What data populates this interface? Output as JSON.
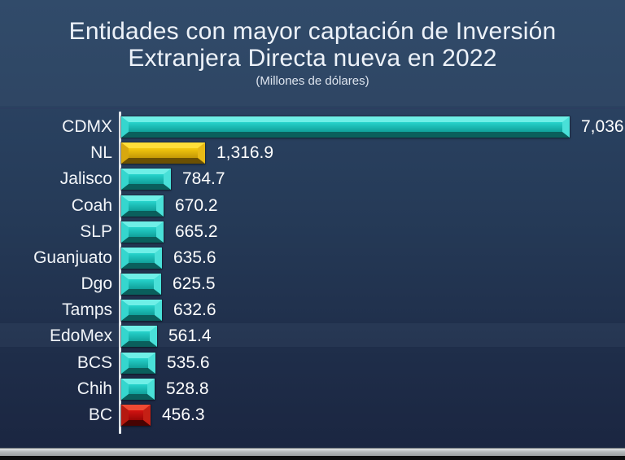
{
  "title": {
    "line1": "Entidades con mayor captación de Inversión",
    "line2": "Extranjera Directa nueva en 2022",
    "subtitle": "(Millones de dólares)"
  },
  "chart_data": {
    "type": "bar",
    "orientation": "horizontal",
    "title": "Entidades con mayor captación de Inversión Extranjera Directa nueva en 2022",
    "units_label": "Millones de dólares",
    "categories": [
      "CDMX",
      "NL",
      "Jalisco",
      "Coah",
      "SLP",
      "Guanjuato",
      "Dgo",
      "Tamps",
      "EdoMex",
      "BCS",
      "Chih",
      "BC"
    ],
    "values": [
      7036,
      1316.9,
      784.7,
      670.2,
      665.2,
      635.6,
      625.5,
      632.6,
      561.4,
      535.6,
      528.8,
      456.3
    ],
    "value_labels": [
      "7,036",
      "1,316.9",
      "784.7",
      "670.2",
      "665.2",
      "635.6",
      "625.5",
      "632.6",
      "561.4",
      "535.6",
      "528.8",
      "456.3"
    ],
    "bar_styles": [
      "cyan",
      "gold",
      "cyan",
      "cyan",
      "cyan",
      "cyan",
      "cyan",
      "cyan",
      "cyan",
      "cyan",
      "cyan",
      "red"
    ],
    "xlim": [
      0,
      7036
    ],
    "grid": false,
    "legend": false,
    "value_labels_position": "outside-end"
  },
  "colors": {
    "background_top": "#2d4767",
    "background_bottom": "#1a2540",
    "title_text": "#edf2f9",
    "label_text": "#f2f5f9",
    "value_text": "#ffffff",
    "axis_line": "#e3e8ec",
    "palettes": {
      "cyan": {
        "top": "#6fefe7",
        "left": "#35d6ce",
        "right": "#49e0d8",
        "bottom": "#0a5f5c",
        "face1": "#27d4cc",
        "face2": "#10a09a"
      },
      "gold": {
        "top": "#ffdf3a",
        "left": "#d8a80e",
        "right": "#e8ba16",
        "bottom": "#6b5003",
        "face1": "#f4c90e",
        "face2": "#c49806"
      },
      "red": {
        "top": "#ef4a33",
        "left": "#b5190f",
        "right": "#c52015",
        "bottom": "#470302",
        "face1": "#d31311",
        "face2": "#990606"
      }
    },
    "window_strip": "#b3b7b9",
    "window_edge": "#0a0b0c"
  }
}
